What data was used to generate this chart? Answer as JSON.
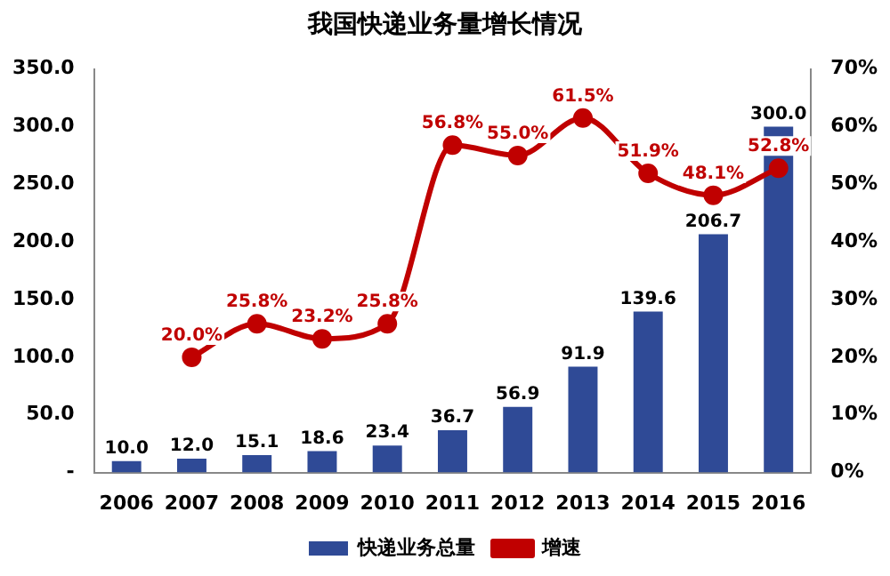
{
  "chart_data": {
    "type": "bar",
    "title": "我国快递业务量增长情况",
    "categories": [
      "2006",
      "2007",
      "2008",
      "2009",
      "2010",
      "2011",
      "2012",
      "2013",
      "2014",
      "2015",
      "2016"
    ],
    "series": [
      {
        "name": "快递业务总量",
        "color": "#2f4a96",
        "values": [
          10.0,
          12.0,
          15.1,
          18.6,
          23.4,
          36.7,
          56.9,
          91.9,
          139.6,
          206.7,
          300.0
        ],
        "value_labels": [
          "10.0",
          "12.0",
          "15.1",
          "18.6",
          "23.4",
          "36.7",
          "56.9",
          "91.9",
          "139.6",
          "206.7",
          "300.0"
        ]
      },
      {
        "name": "增速",
        "type": "line",
        "axis": "y2",
        "color": "#c00000",
        "marker": "circle",
        "values": [
          null,
          20.0,
          25.8,
          23.2,
          25.8,
          56.8,
          55.0,
          61.5,
          51.9,
          48.1,
          52.8
        ],
        "value_labels": [
          null,
          "20.0%",
          "25.8%",
          "23.2%",
          "25.8%",
          "56.8%",
          "55.0%",
          "61.5%",
          "51.9%",
          "48.1%",
          "52.8%"
        ]
      }
    ],
    "ylim": [
      0,
      350
    ],
    "yticks": [
      {
        "value": 0,
        "label": "-"
      },
      {
        "value": 50,
        "label": "50.0"
      },
      {
        "value": 100,
        "label": "100.0"
      },
      {
        "value": 150,
        "label": "150.0"
      },
      {
        "value": 200,
        "label": "200.0"
      },
      {
        "value": 250,
        "label": "250.0"
      },
      {
        "value": 300,
        "label": "300.0"
      },
      {
        "value": 350,
        "label": "350.0"
      }
    ],
    "y2lim": [
      0,
      70
    ],
    "y2ticks": [
      {
        "value": 0,
        "label": "0%"
      },
      {
        "value": 10,
        "label": "10%"
      },
      {
        "value": 20,
        "label": "20%"
      },
      {
        "value": 30,
        "label": "30%"
      },
      {
        "value": 40,
        "label": "40%"
      },
      {
        "value": 50,
        "label": "50%"
      },
      {
        "value": 60,
        "label": "60%"
      },
      {
        "value": 70,
        "label": "70%"
      }
    ],
    "grid": false,
    "legend": "bottom"
  }
}
